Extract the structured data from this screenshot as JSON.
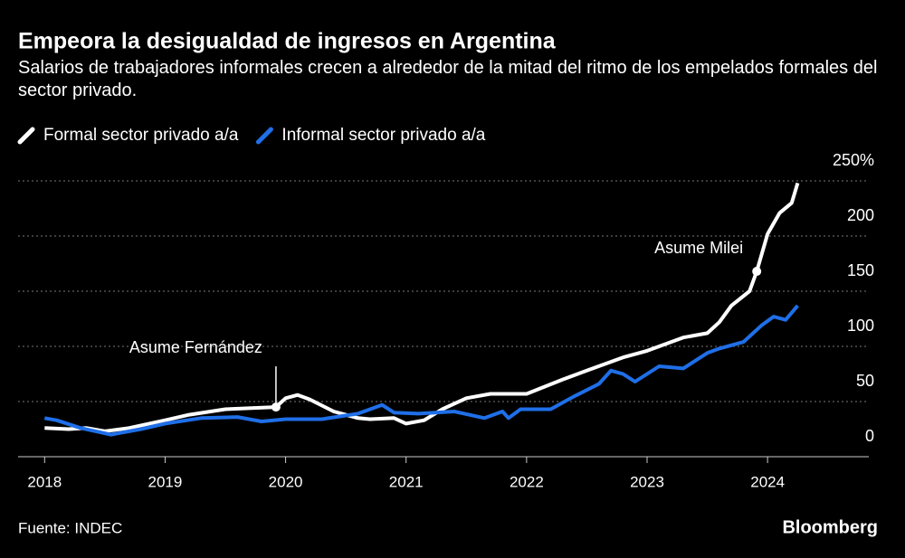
{
  "chart_data": {
    "type": "line",
    "title": "Empeora la desigualdad de ingresos en Argentina",
    "subtitle": "Salarios de trabajadores informales crecen a alrededor de la mitad del ritmo de los empelados formales del sector privado.",
    "source": "Fuente: INDEC",
    "brand": "Bloomberg",
    "xlim": [
      2017.78,
      2024.84
    ],
    "xticks": [
      2018,
      2019,
      2020,
      2021,
      2022,
      2023,
      2024
    ],
    "ylim": [
      0,
      250
    ],
    "yticks": [
      0,
      50,
      100,
      150,
      200,
      {
        "value": 250,
        "label": "250%"
      }
    ],
    "grid": true,
    "series": [
      {
        "name": "Formal sector privado a/a",
        "color": "#ffffff",
        "x": [
          2018.0,
          2018.2,
          2018.35,
          2018.5,
          2018.7,
          2019.0,
          2019.2,
          2019.5,
          2019.92,
          2020.0,
          2020.1,
          2020.2,
          2020.4,
          2020.6,
          2020.7,
          2020.9,
          2021.0,
          2021.15,
          2021.3,
          2021.5,
          2021.7,
          2022.0,
          2022.3,
          2022.5,
          2022.8,
          2023.0,
          2023.3,
          2023.5,
          2023.6,
          2023.7,
          2023.85,
          2023.91,
          2024.0,
          2024.1,
          2024.2,
          2024.25
        ],
        "values": [
          26,
          25,
          26,
          23,
          26,
          33,
          38,
          43,
          45,
          53,
          56,
          52,
          41,
          35,
          34,
          35,
          30,
          33,
          43,
          53,
          57,
          57,
          70,
          78,
          90,
          96,
          108,
          112,
          122,
          137,
          150,
          168,
          202,
          221,
          230,
          248
        ]
      },
      {
        "name": "Informal sector privado a/a",
        "color": "#1f6fe8",
        "x": [
          2018.0,
          2018.1,
          2018.3,
          2018.55,
          2018.8,
          2019.0,
          2019.3,
          2019.6,
          2019.8,
          2020.0,
          2020.3,
          2020.6,
          2020.8,
          2020.9,
          2021.1,
          2021.4,
          2021.65,
          2021.8,
          2021.85,
          2021.95,
          2022.2,
          2022.4,
          2022.6,
          2022.7,
          2022.8,
          2022.9,
          2023.1,
          2023.3,
          2023.5,
          2023.6,
          2023.8,
          2023.95,
          2024.05,
          2024.15,
          2024.25
        ],
        "values": [
          35,
          33,
          26,
          20,
          25,
          30,
          35,
          36,
          32,
          34,
          34,
          39,
          47,
          40,
          39,
          41,
          35,
          41,
          35,
          43,
          43,
          55,
          66,
          78,
          75,
          68,
          82,
          80,
          94,
          98,
          104,
          119,
          127,
          124,
          137
        ]
      }
    ],
    "annotations": [
      {
        "text": "Asume Fernández",
        "x": 2019.92,
        "y": 45
      },
      {
        "text": "Asume Milei",
        "x": 2023.91,
        "y": 168
      }
    ]
  }
}
